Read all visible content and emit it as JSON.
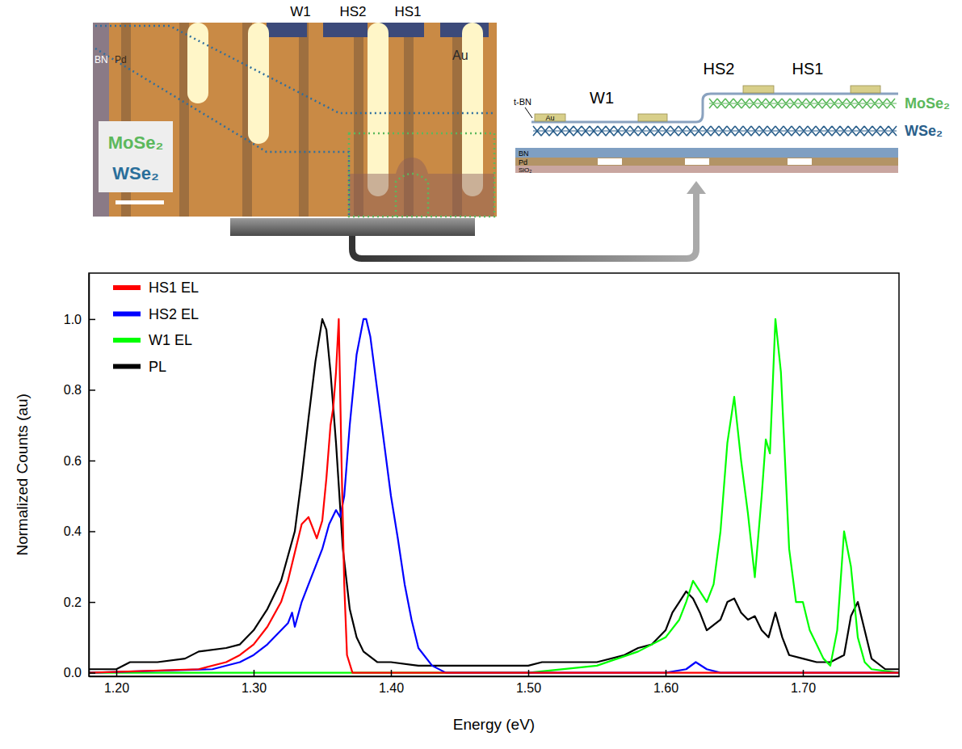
{
  "micrograph": {
    "contacts": [
      "W1",
      "HS2",
      "HS1"
    ],
    "labels": [
      "BN",
      "Pd",
      "Au"
    ],
    "materials": [
      "MoSe₂",
      "WSe₂"
    ]
  },
  "schematic": {
    "contacts": [
      "W1",
      "HS2",
      "HS1"
    ],
    "layers": [
      "MoSe₂",
      "WSe₂"
    ],
    "substrate": [
      "t-BN",
      "Au",
      "BN",
      "Pd",
      "SiO₂"
    ]
  },
  "chart_data": {
    "type": "line",
    "xlabel": "Energy (eV)",
    "ylabel": "Normalized Counts (au)",
    "xlim": [
      1.18,
      1.77
    ],
    "ylim": [
      -0.01,
      1.13
    ],
    "xticks": [
      {
        "value": 1.2,
        "label": "1.20"
      },
      {
        "value": 1.3,
        "label": "1.30"
      },
      {
        "value": 1.4,
        "label": "1.40"
      },
      {
        "value": 1.5,
        "label": "1.50"
      },
      {
        "value": 1.6,
        "label": "1.60"
      },
      {
        "value": 1.7,
        "label": "1.70"
      }
    ],
    "yticks": [
      {
        "value": 0,
        "label": "0.0"
      },
      {
        "value": 0.2,
        "label": "0.2"
      },
      {
        "value": 0.4,
        "label": "0.4"
      },
      {
        "value": 0.6,
        "label": "0.6"
      },
      {
        "value": 0.8,
        "label": "0.8"
      },
      {
        "value": 1,
        "label": "1.0"
      }
    ],
    "legend": "upper left",
    "series": [
      {
        "name": "HS1 EL",
        "color": "#ff0000",
        "x": [
          1.18,
          1.26,
          1.28,
          1.29,
          1.3,
          1.31,
          1.32,
          1.325,
          1.33,
          1.335,
          1.34,
          1.343,
          1.346,
          1.35,
          1.353,
          1.356,
          1.358,
          1.36,
          1.362,
          1.364,
          1.366,
          1.368,
          1.372,
          1.38,
          1.77
        ],
        "values": [
          0,
          0.01,
          0.03,
          0.05,
          0.08,
          0.13,
          0.2,
          0.26,
          0.34,
          0.42,
          0.44,
          0.41,
          0.38,
          0.43,
          0.55,
          0.7,
          0.75,
          0.85,
          1.0,
          0.6,
          0.25,
          0.05,
          0,
          0,
          0
        ]
      },
      {
        "name": "HS2 EL",
        "color": "#0000ff",
        "x": [
          1.18,
          1.27,
          1.29,
          1.3,
          1.31,
          1.32,
          1.325,
          1.328,
          1.33,
          1.335,
          1.34,
          1.345,
          1.35,
          1.355,
          1.36,
          1.363,
          1.366,
          1.37,
          1.375,
          1.38,
          1.382,
          1.385,
          1.39,
          1.395,
          1.4,
          1.405,
          1.41,
          1.415,
          1.42,
          1.43,
          1.44,
          1.6,
          1.615,
          1.622,
          1.63,
          1.64,
          1.77
        ],
        "values": [
          0,
          0.01,
          0.03,
          0.05,
          0.08,
          0.12,
          0.14,
          0.17,
          0.13,
          0.2,
          0.25,
          0.3,
          0.35,
          0.42,
          0.46,
          0.44,
          0.5,
          0.7,
          0.9,
          1.0,
          1.0,
          0.95,
          0.8,
          0.65,
          0.5,
          0.38,
          0.25,
          0.15,
          0.07,
          0.02,
          0,
          0,
          0.01,
          0.03,
          0.01,
          0,
          0
        ]
      },
      {
        "name": "W1 EL",
        "color": "#00ff00",
        "x": [
          1.18,
          1.5,
          1.55,
          1.58,
          1.6,
          1.61,
          1.615,
          1.62,
          1.625,
          1.63,
          1.635,
          1.64,
          1.645,
          1.65,
          1.655,
          1.66,
          1.665,
          1.67,
          1.673,
          1.676,
          1.68,
          1.684,
          1.69,
          1.695,
          1.7,
          1.705,
          1.71,
          1.715,
          1.72,
          1.725,
          1.73,
          1.735,
          1.74,
          1.745,
          1.75,
          1.77
        ],
        "values": [
          0,
          0,
          0.02,
          0.06,
          0.1,
          0.15,
          0.2,
          0.26,
          0.23,
          0.2,
          0.25,
          0.4,
          0.65,
          0.78,
          0.6,
          0.45,
          0.27,
          0.5,
          0.66,
          0.62,
          1.0,
          0.85,
          0.35,
          0.2,
          0.2,
          0.12,
          0.08,
          0.04,
          0.02,
          0.12,
          0.4,
          0.3,
          0.1,
          0.03,
          0.01,
          0
        ]
      },
      {
        "name": "PL",
        "color": "#000000",
        "x": [
          1.18,
          1.2,
          1.21,
          1.23,
          1.25,
          1.26,
          1.28,
          1.29,
          1.3,
          1.31,
          1.32,
          1.33,
          1.335,
          1.34,
          1.345,
          1.35,
          1.353,
          1.356,
          1.36,
          1.365,
          1.37,
          1.375,
          1.38,
          1.39,
          1.4,
          1.42,
          1.45,
          1.5,
          1.51,
          1.55,
          1.57,
          1.58,
          1.59,
          1.6,
          1.605,
          1.61,
          1.615,
          1.62,
          1.625,
          1.63,
          1.64,
          1.645,
          1.65,
          1.655,
          1.66,
          1.665,
          1.67,
          1.675,
          1.68,
          1.685,
          1.69,
          1.7,
          1.71,
          1.72,
          1.73,
          1.735,
          1.74,
          1.745,
          1.75,
          1.76,
          1.77
        ],
        "values": [
          0.01,
          0.01,
          0.03,
          0.03,
          0.04,
          0.06,
          0.07,
          0.08,
          0.12,
          0.18,
          0.26,
          0.4,
          0.55,
          0.72,
          0.88,
          1.0,
          0.97,
          0.85,
          0.65,
          0.35,
          0.18,
          0.1,
          0.06,
          0.03,
          0.03,
          0.02,
          0.02,
          0.02,
          0.03,
          0.03,
          0.05,
          0.07,
          0.08,
          0.12,
          0.17,
          0.2,
          0.23,
          0.21,
          0.17,
          0.12,
          0.15,
          0.2,
          0.21,
          0.17,
          0.15,
          0.16,
          0.12,
          0.1,
          0.17,
          0.1,
          0.05,
          0.04,
          0.03,
          0.03,
          0.05,
          0.16,
          0.2,
          0.12,
          0.04,
          0.01,
          0.01
        ]
      }
    ]
  }
}
